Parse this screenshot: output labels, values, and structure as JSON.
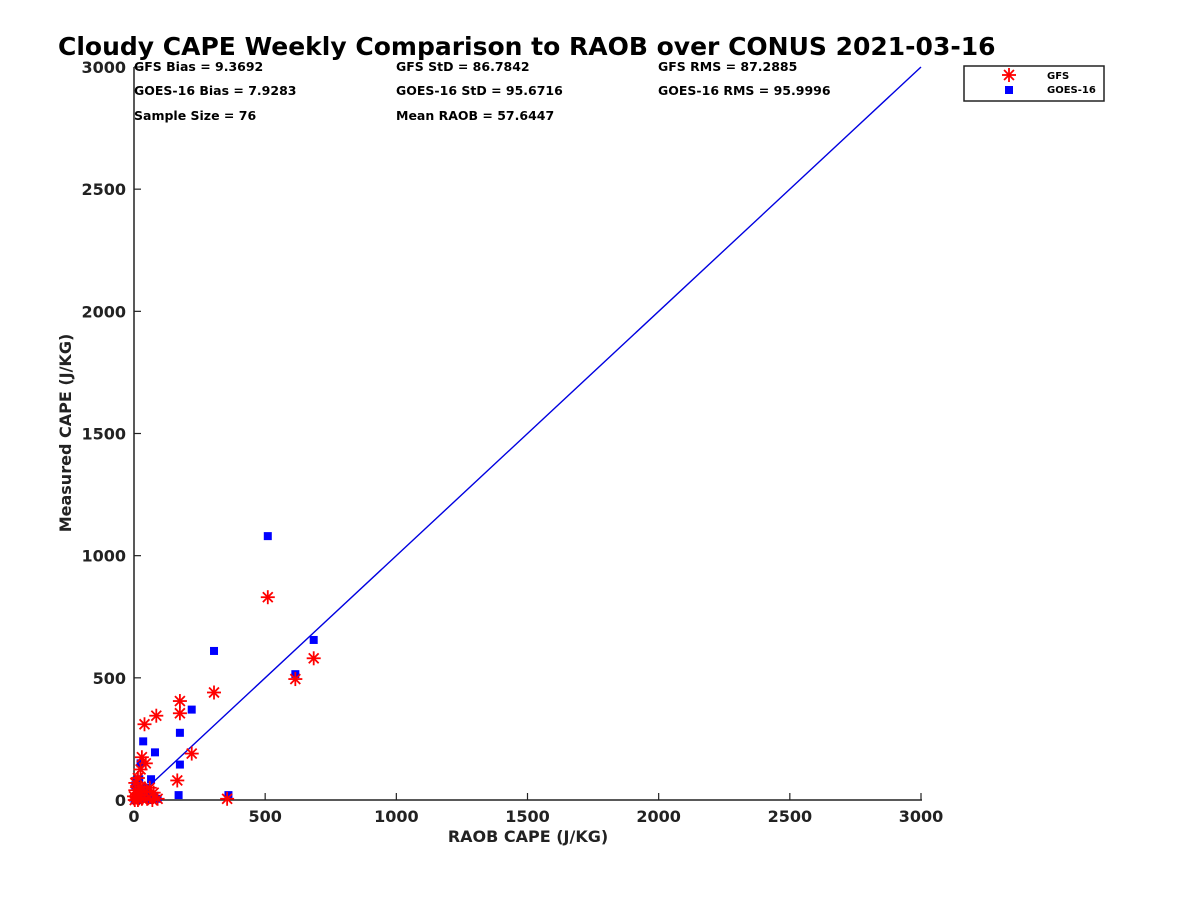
{
  "chart_data": {
    "type": "scatter",
    "title": "Cloudy CAPE Weekly Comparison to RAOB over CONUS 2021-03-16",
    "xlabel": "RAOB CAPE (J/KG)",
    "ylabel": "Measured CAPE (J/KG)",
    "xlim": [
      0,
      3000
    ],
    "ylim": [
      0,
      3000
    ],
    "xticks": [
      0,
      500,
      1000,
      1500,
      2000,
      2500,
      3000
    ],
    "yticks": [
      0,
      500,
      1000,
      1500,
      2000,
      2500,
      3000
    ],
    "xtick_labels": [
      "0",
      "500",
      "1000",
      "1500",
      "2000",
      "2500",
      "3000"
    ],
    "ytick_labels": [
      "0",
      "500",
      "1000",
      "1500",
      "2000",
      "2500",
      "3000"
    ],
    "legend_position": "top-right, outside plot",
    "stats": [
      "GFS Bias = 9.3692",
      "GOES-16 Bias = 7.9283",
      "Sample Size = 76",
      "GFS StD = 86.7842",
      "GOES-16 StD = 95.6716",
      "Mean RAOB = 57.6447",
      "GFS RMS = 87.2885",
      "GOES-16 RMS = 95.9996"
    ],
    "reference_line": {
      "x": [
        0,
        3000
      ],
      "y": [
        0,
        3000
      ],
      "color": "#0000e0"
    },
    "series": [
      {
        "name": "GFS",
        "marker": "asterisk",
        "color": "#ff0000",
        "points": [
          [
            510,
            830
          ],
          [
            685,
            580
          ],
          [
            615,
            495
          ],
          [
            305,
            440
          ],
          [
            175,
            405
          ],
          [
            175,
            355
          ],
          [
            85,
            345
          ],
          [
            40,
            310
          ],
          [
            220,
            190
          ],
          [
            165,
            80
          ],
          [
            355,
            5
          ],
          [
            30,
            175
          ],
          [
            45,
            150
          ],
          [
            25,
            125
          ],
          [
            15,
            90
          ],
          [
            60,
            50
          ],
          [
            5,
            40
          ],
          [
            75,
            30
          ],
          [
            20,
            20
          ],
          [
            10,
            10
          ],
          [
            3,
            0
          ],
          [
            15,
            0
          ],
          [
            30,
            5
          ],
          [
            50,
            5
          ],
          [
            70,
            0
          ],
          [
            0,
            15
          ],
          [
            5,
            70
          ],
          [
            40,
            35
          ],
          [
            90,
            5
          ],
          [
            25,
            55
          ]
        ]
      },
      {
        "name": "GOES-16",
        "marker": "square",
        "color": "#0000ff",
        "points": [
          [
            510,
            1080
          ],
          [
            685,
            655
          ],
          [
            615,
            515
          ],
          [
            305,
            610
          ],
          [
            220,
            370
          ],
          [
            175,
            275
          ],
          [
            175,
            145
          ],
          [
            80,
            195
          ],
          [
            35,
            240
          ],
          [
            25,
            150
          ],
          [
            10,
            80
          ],
          [
            20,
            85
          ],
          [
            65,
            85
          ],
          [
            5,
            60
          ],
          [
            45,
            50
          ],
          [
            15,
            35
          ],
          [
            30,
            25
          ],
          [
            55,
            20
          ],
          [
            170,
            20
          ],
          [
            360,
            20
          ],
          [
            8,
            5
          ],
          [
            20,
            0
          ],
          [
            40,
            5
          ],
          [
            60,
            0
          ],
          [
            75,
            10
          ],
          [
            2,
            0
          ],
          [
            12,
            15
          ],
          [
            50,
            30
          ],
          [
            90,
            5
          ],
          [
            35,
            8
          ]
        ]
      }
    ]
  }
}
